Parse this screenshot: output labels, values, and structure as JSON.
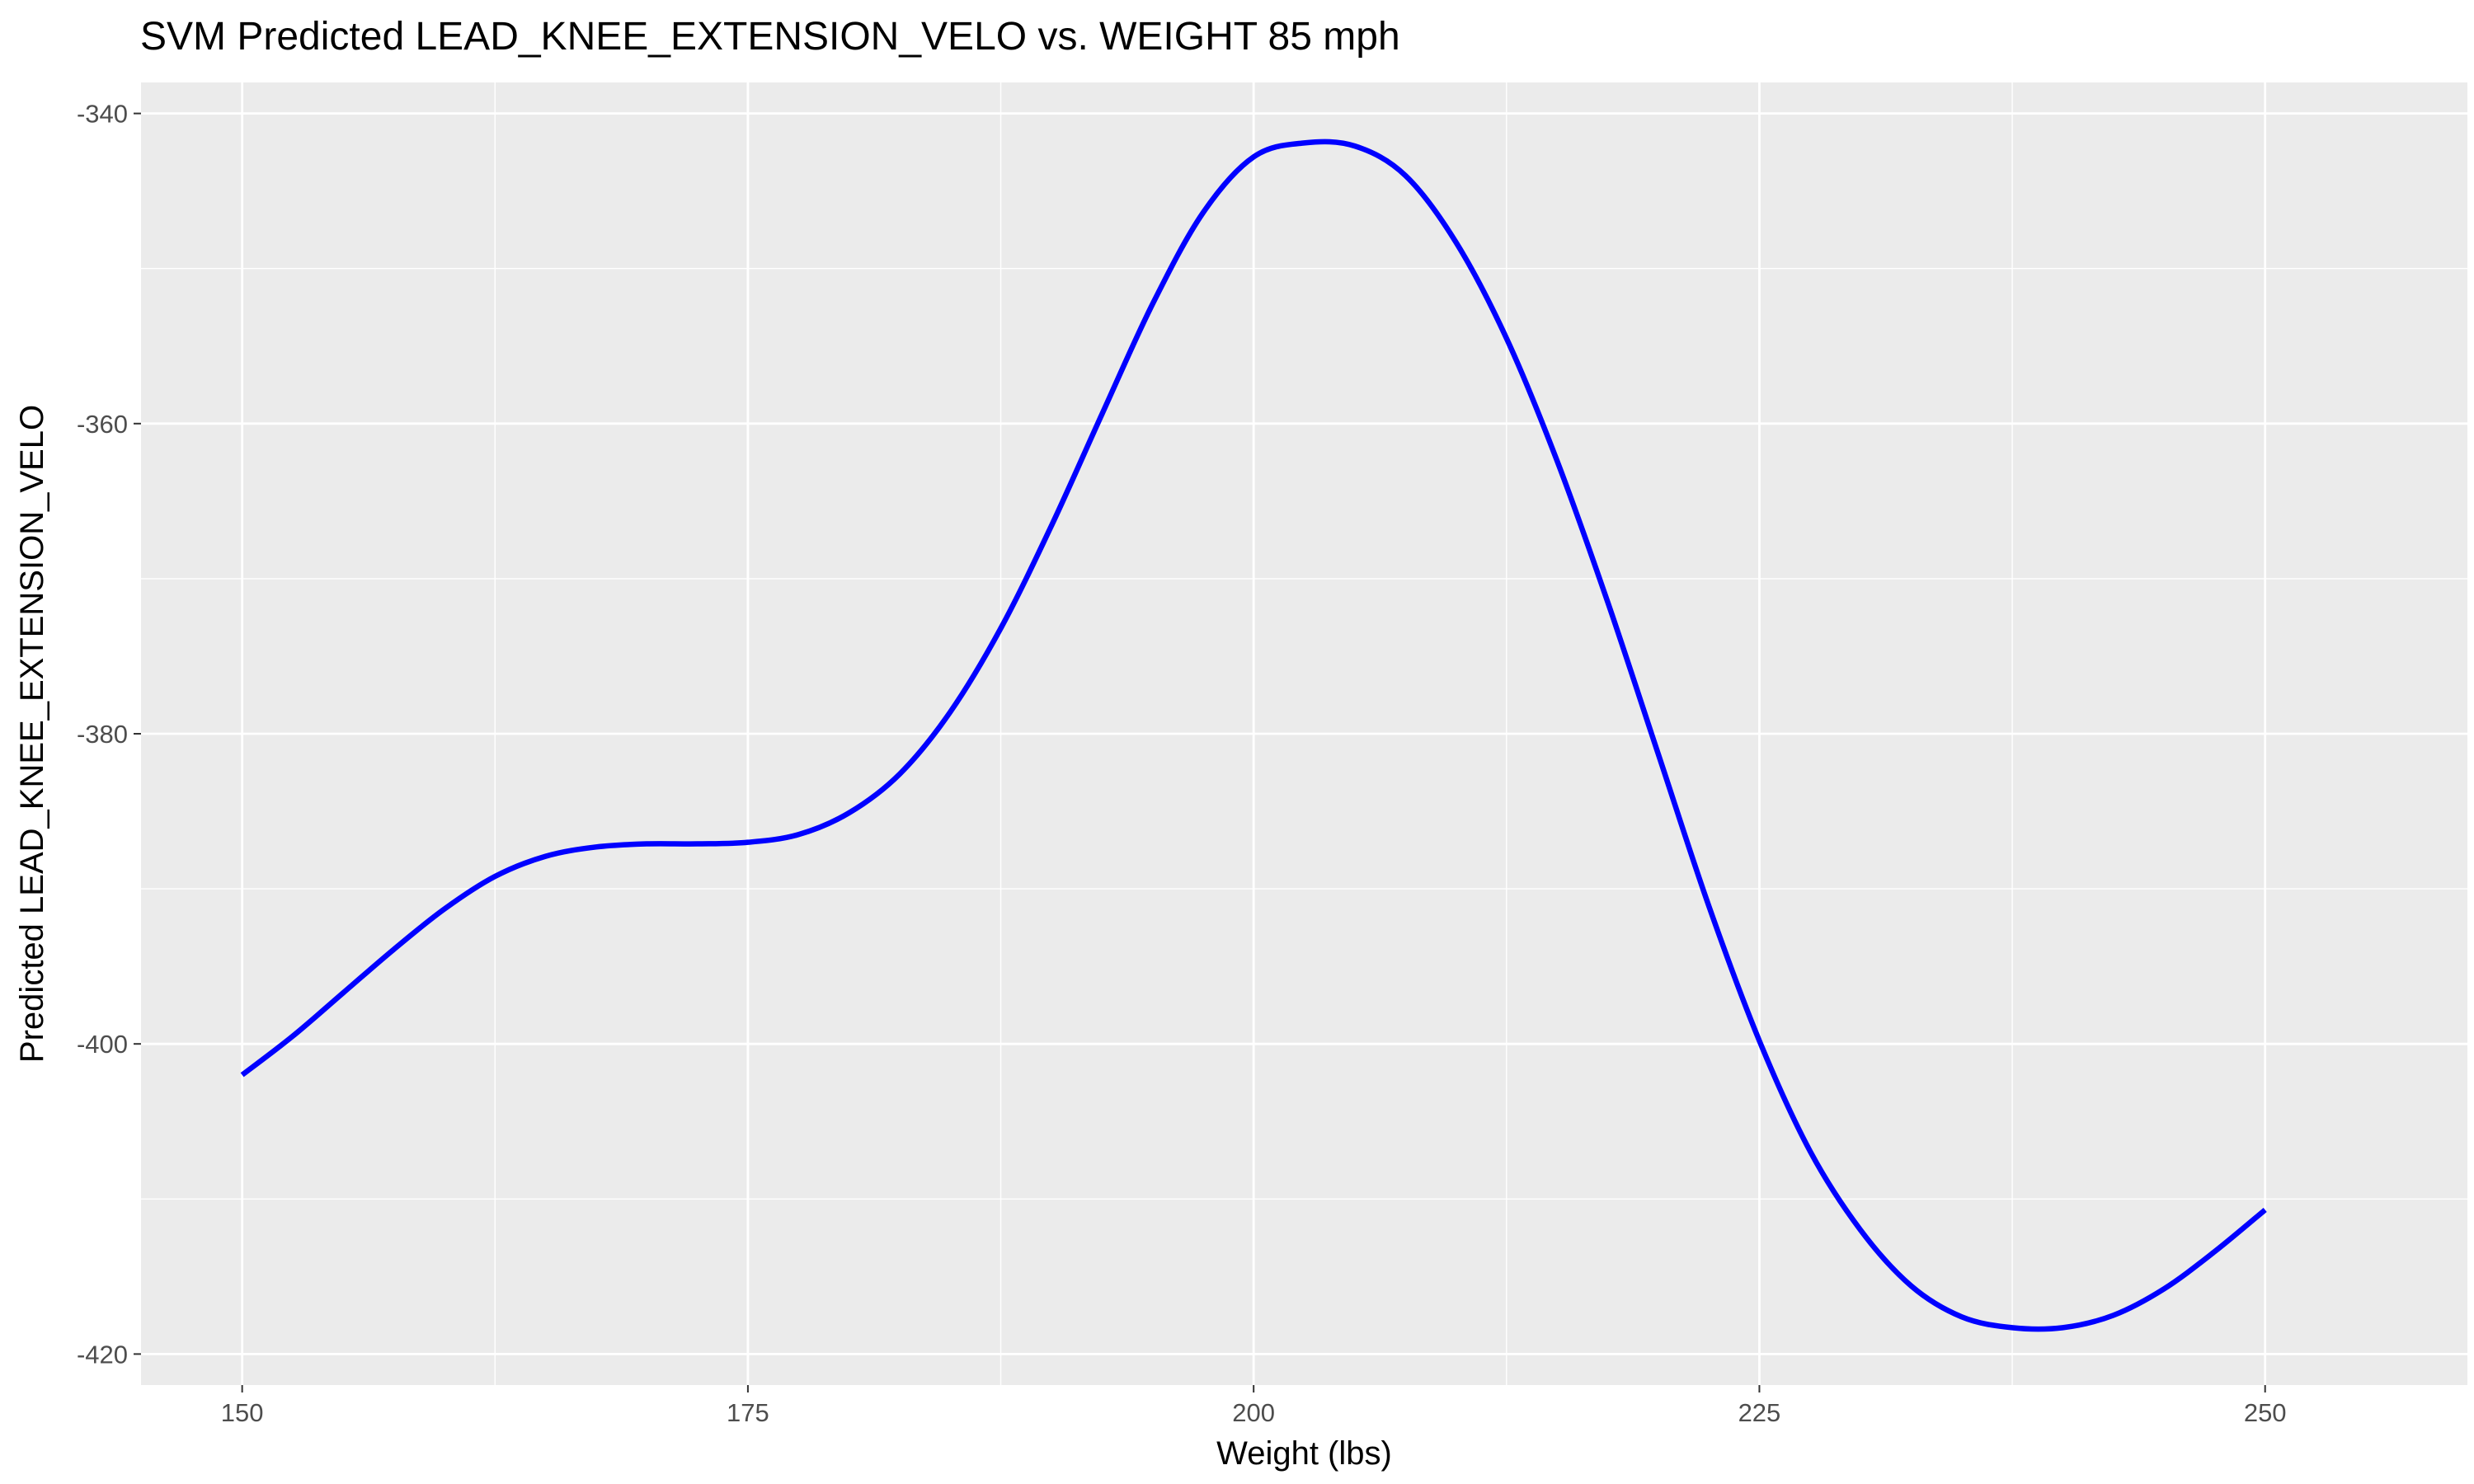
{
  "chart_data": {
    "type": "line",
    "title": "SVM Predicted LEAD_KNEE_EXTENSION_VELO vs. WEIGHT 85 mph",
    "xlabel": "Weight (lbs)",
    "ylabel": "Predicted LEAD_KNEE_EXTENSION_VELO",
    "xlim": [
      145,
      260
    ],
    "ylim": [
      -422,
      -338
    ],
    "x_ticks": [
      150,
      175,
      200,
      225,
      250
    ],
    "x_tick_labels": [
      "150",
      "175",
      "200",
      "225",
      "250"
    ],
    "y_ticks": [
      -420,
      -400,
      -380,
      -360,
      -340
    ],
    "y_tick_labels": [
      "-420",
      "-400",
      "-380",
      "-360",
      "-340"
    ],
    "grid": true,
    "legend": "none",
    "series": [
      {
        "color": "#0000ff",
        "x": [
          150,
          152.5,
          155,
          157.5,
          160,
          162.5,
          165,
          167.5,
          170,
          172.5,
          175,
          177.5,
          180,
          182.5,
          185,
          187.5,
          190,
          192.5,
          195,
          197.5,
          200,
          202.5,
          205,
          207.5,
          210,
          212.5,
          215,
          217.5,
          220,
          222.5,
          225,
          227.5,
          230,
          232.5,
          235,
          237.5,
          240,
          242.5,
          245,
          247.5,
          250
        ],
        "y": [
          -402,
          -399.5,
          -396.7,
          -393.9,
          -391.3,
          -389.2,
          -387.9,
          -387.3,
          -387.1,
          -387.1,
          -387.0,
          -386.5,
          -385.1,
          -382.6,
          -378.6,
          -373.2,
          -366.6,
          -359.4,
          -352.3,
          -346.4,
          -342.8,
          -341.9,
          -342.1,
          -344.0,
          -348.3,
          -354.5,
          -362.4,
          -371.5,
          -381.3,
          -391.1,
          -399.8,
          -406.9,
          -412.0,
          -415.6,
          -417.6,
          -418.3,
          -418.3,
          -417.5,
          -415.8,
          -413.4,
          -410.7
        ]
      }
    ]
  },
  "colors": {
    "panel_background": "#ebebeb",
    "grid": "#ffffff",
    "line": "#0000ff"
  }
}
